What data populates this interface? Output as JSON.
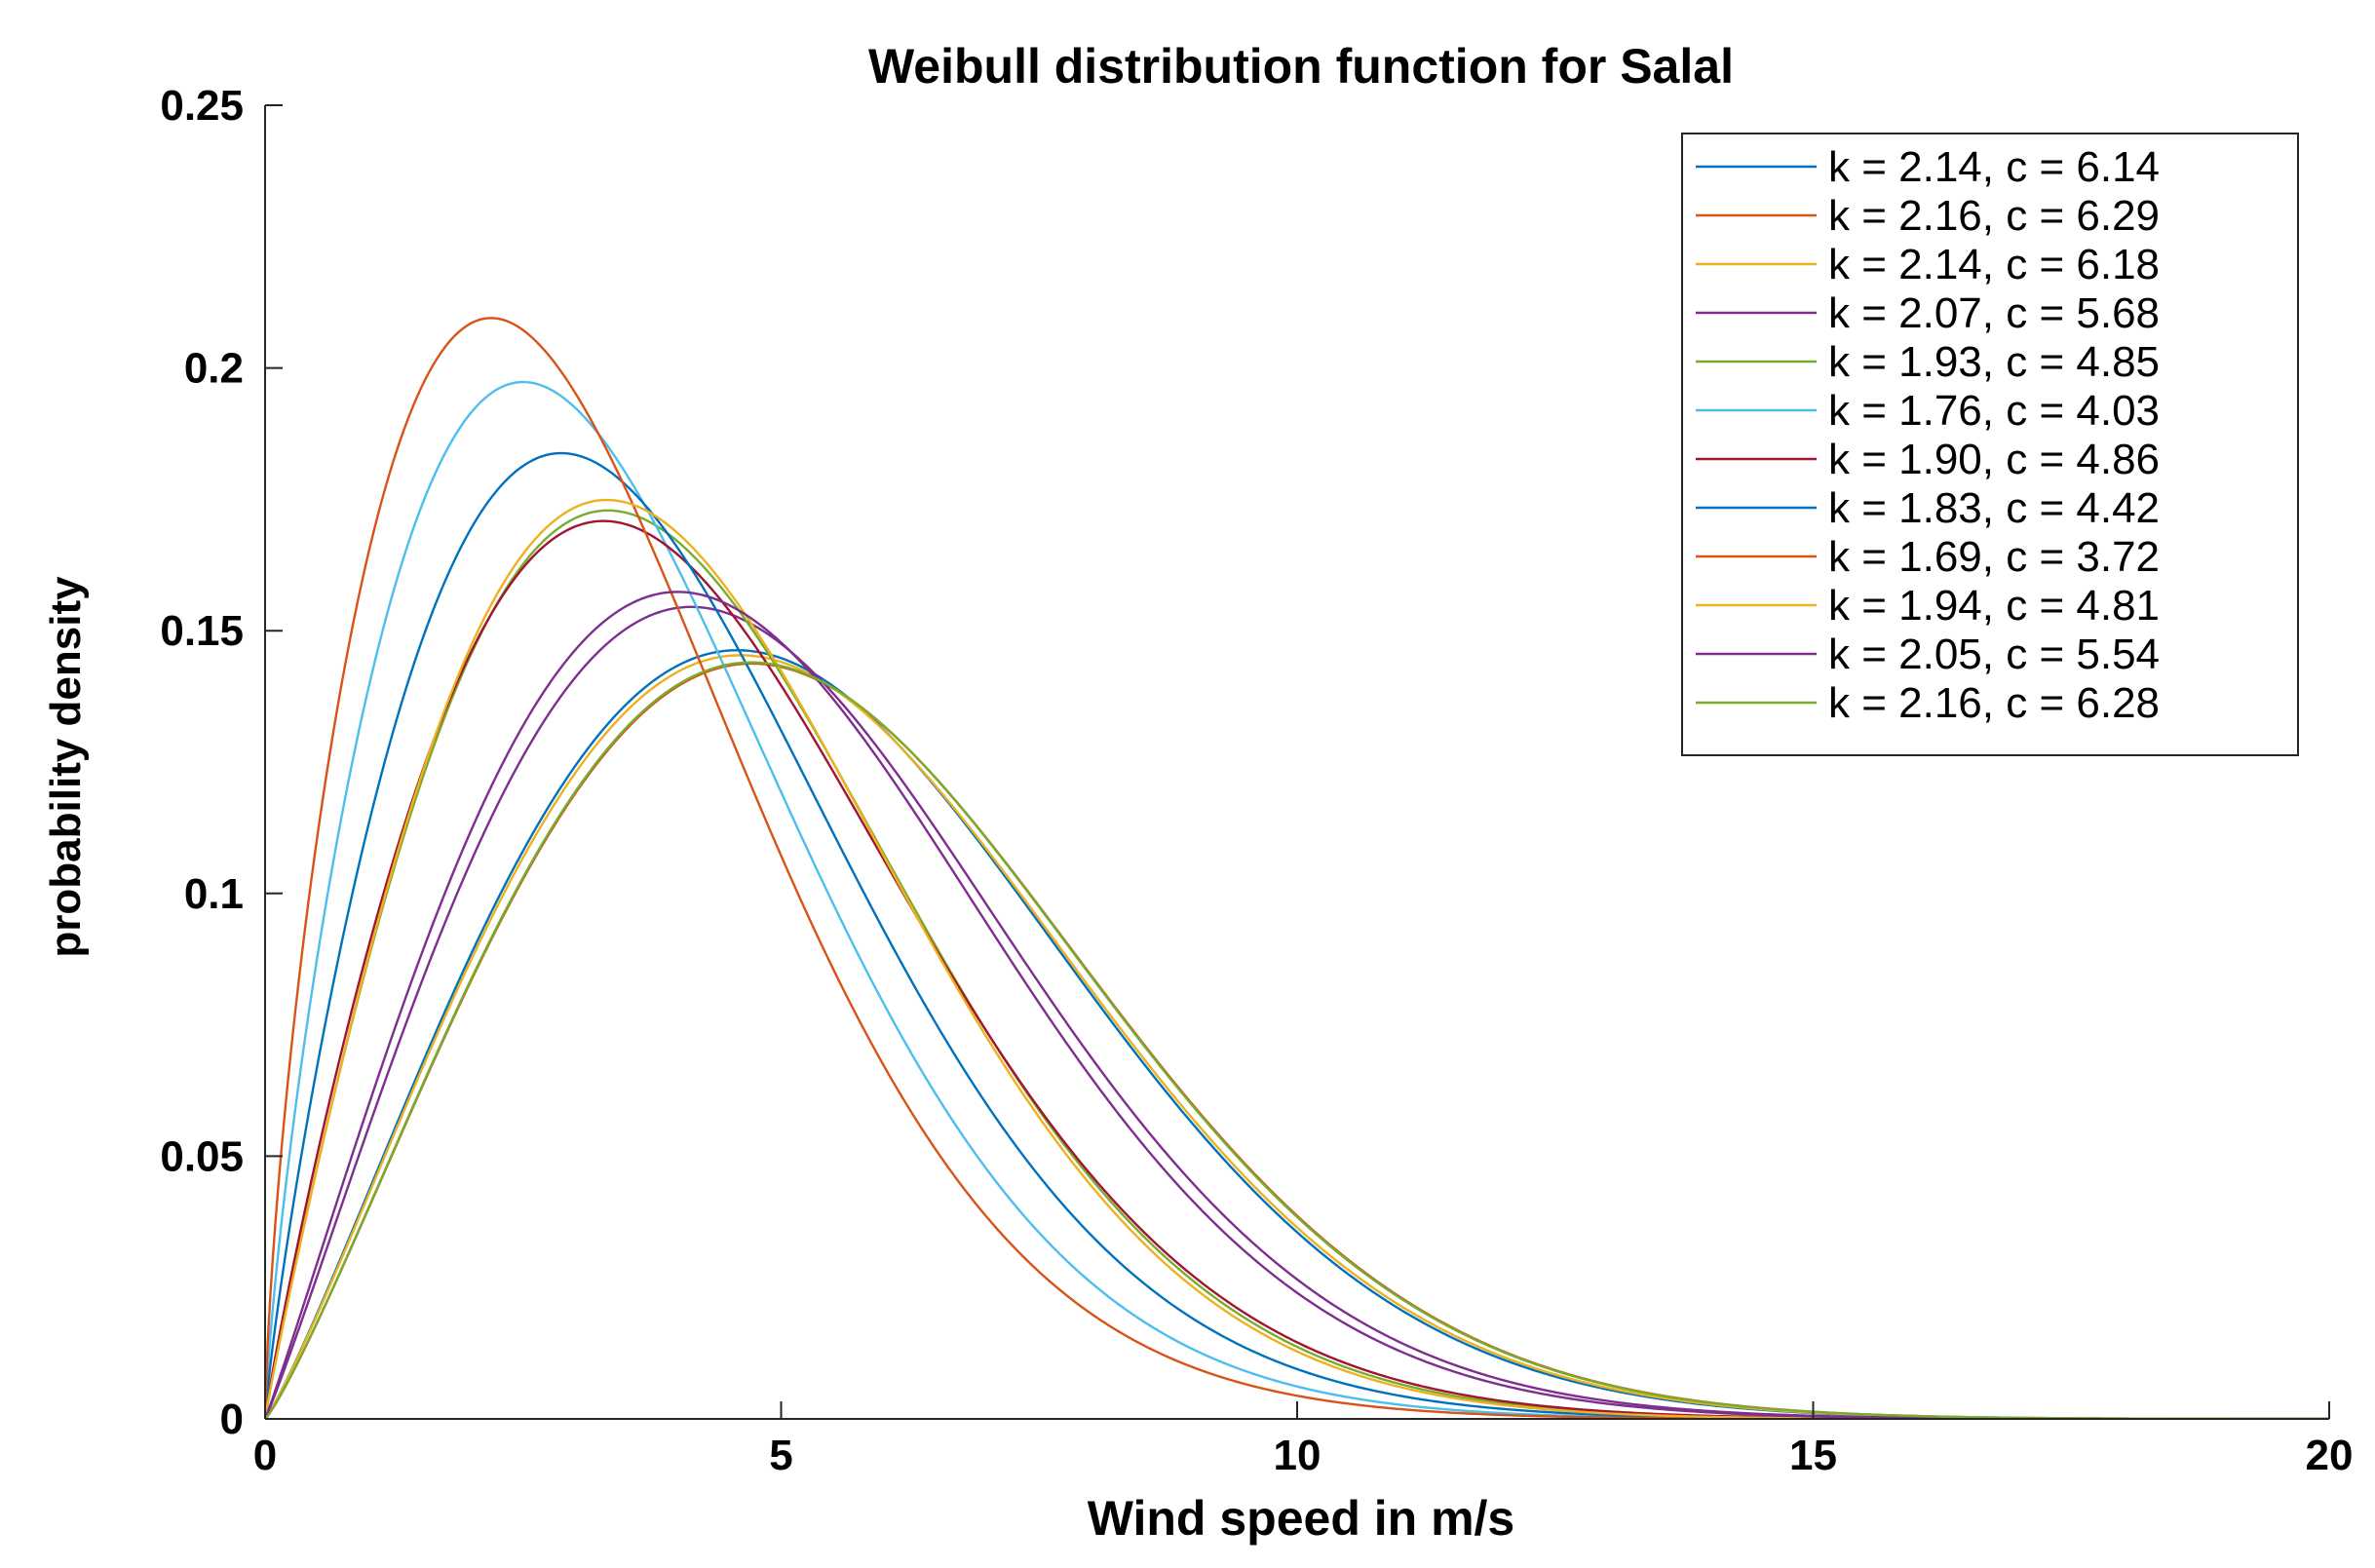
{
  "chart_data": {
    "type": "line",
    "title": "Weibull distribution function for Salal",
    "xlabel": "Wind speed in m/s",
    "ylabel": "probability density",
    "xlim": [
      0,
      20
    ],
    "ylim": [
      0,
      0.25
    ],
    "xticks": [
      0,
      5,
      10,
      15,
      20
    ],
    "xtick_labels": [
      "0",
      "5",
      "10",
      "15",
      "20"
    ],
    "yticks": [
      0,
      0.05,
      0.1,
      0.15,
      0.2,
      0.25
    ],
    "ytick_labels": [
      "0",
      "0.05",
      "0.1",
      "0.15",
      "0.2",
      "0.25"
    ],
    "grid": false,
    "legend_position": "top-right",
    "series": [
      {
        "name": "k = 2.14, c = 6.14",
        "k": 2.14,
        "c": 6.14,
        "color": "#0072BD"
      },
      {
        "name": "k = 2.16, c = 6.29",
        "k": 2.16,
        "c": 6.29,
        "color": "#D95319"
      },
      {
        "name": "k = 2.14, c = 6.18",
        "k": 2.14,
        "c": 6.18,
        "color": "#EDB120"
      },
      {
        "name": "k = 2.07, c = 5.68",
        "k": 2.07,
        "c": 5.68,
        "color": "#7E2F8E"
      },
      {
        "name": "k = 1.93, c = 4.85",
        "k": 1.93,
        "c": 4.85,
        "color": "#77AC30"
      },
      {
        "name": "k = 1.76, c = 4.03",
        "k": 1.76,
        "c": 4.03,
        "color": "#4DBEEE"
      },
      {
        "name": "k = 1.90, c = 4.86",
        "k": 1.9,
        "c": 4.86,
        "color": "#A2142F"
      },
      {
        "name": "k = 1.83, c = 4.42",
        "k": 1.83,
        "c": 4.42,
        "color": "#0072BD"
      },
      {
        "name": "k = 1.69, c = 3.72",
        "k": 1.69,
        "c": 3.72,
        "color": "#D95319"
      },
      {
        "name": "k = 1.94, c = 4.81",
        "k": 1.94,
        "c": 4.81,
        "color": "#EDB120"
      },
      {
        "name": "k = 2.05, c = 5.54",
        "k": 2.05,
        "c": 5.54,
        "color": "#7E2F8E"
      },
      {
        "name": "k = 2.16, c = 6.28",
        "k": 2.16,
        "c": 6.28,
        "color": "#77AC30"
      }
    ]
  }
}
